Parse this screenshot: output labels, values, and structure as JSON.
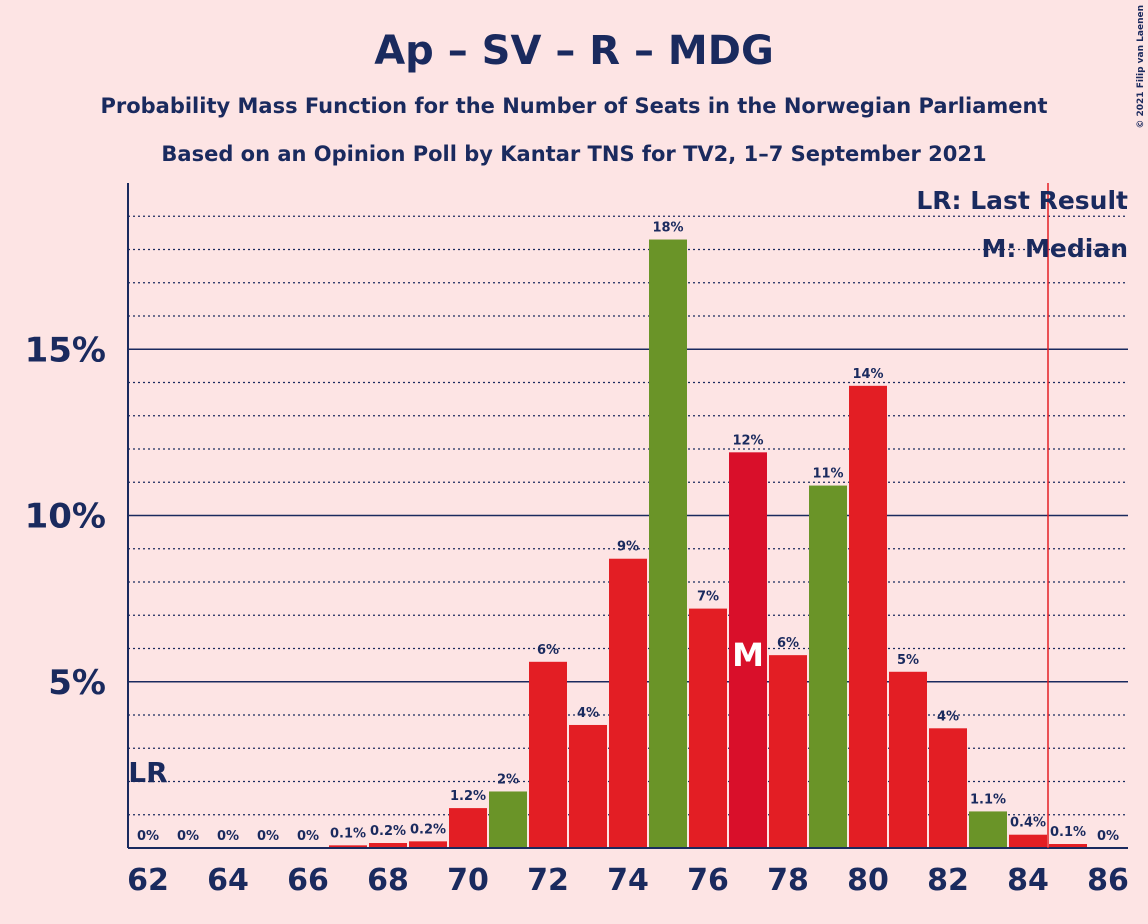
{
  "chart_data": {
    "type": "bar",
    "title": "Ap – SV – R – MDG",
    "subtitle": "Probability Mass Function for the Number of Seats in the Norwegian Parliament",
    "caption": "Based on an Opinion Poll by Kantar TNS for TV2, 1–7 September 2021",
    "copyright": "© 2021 Filip van Laenen",
    "x": [
      62,
      63,
      64,
      65,
      66,
      67,
      68,
      69,
      70,
      71,
      72,
      73,
      74,
      75,
      76,
      77,
      78,
      79,
      80,
      81,
      82,
      83,
      84,
      85,
      86
    ],
    "values": [
      0,
      0,
      0,
      0,
      0,
      0.08,
      0.15,
      0.2,
      1.2,
      1.7,
      5.6,
      3.7,
      8.7,
      18.3,
      7.2,
      11.9,
      5.8,
      10.9,
      13.9,
      5.3,
      3.6,
      1.1,
      0.4,
      0.12,
      0
    ],
    "value_labels": [
      "0%",
      "0%",
      "0%",
      "0%",
      "0%",
      "0.1%",
      "0.2%",
      "0.2%",
      "1.2%",
      "2%",
      "6%",
      "4%",
      "9%",
      "18%",
      "7%",
      "12%",
      "6%",
      "11%",
      "14%",
      "5%",
      "4%",
      "1.1%",
      "0.4%",
      "0.1%",
      "0%"
    ],
    "colors": [
      "#e31e24",
      "#e31e24",
      "#e31e24",
      "#e31e24",
      "#e31e24",
      "#e31e24",
      "#e31e24",
      "#e31e24",
      "#e31e24",
      "#6a9428",
      "#e31e24",
      "#e31e24",
      "#e31e24",
      "#6a9428",
      "#e31e24",
      "#d90f2a",
      "#e31e24",
      "#6a9428",
      "#e31e24",
      "#e31e24",
      "#e31e24",
      "#6a9428",
      "#e31e24",
      "#e31e24",
      "#e31e24"
    ],
    "xlim": [
      61.5,
      86.5
    ],
    "xticks": [
      62,
      64,
      66,
      68,
      70,
      72,
      74,
      76,
      78,
      80,
      82,
      84,
      86
    ],
    "ylim": [
      0,
      20
    ],
    "yticks": [
      {
        "value": 5,
        "label": "5%"
      },
      {
        "value": 10,
        "label": "10%"
      },
      {
        "value": 15,
        "label": "15%"
      }
    ],
    "minor_yticks": [
      1,
      2,
      3,
      4,
      6,
      7,
      8,
      9,
      11,
      12,
      13,
      14,
      16,
      17,
      18,
      19
    ],
    "grid": true,
    "last_result_line": 84.5,
    "annotations": [
      {
        "text": "LR",
        "x": 62
      },
      {
        "text": "M",
        "x": 77
      }
    ],
    "legend": [
      "LR: Last Result",
      "M: Median"
    ]
  }
}
